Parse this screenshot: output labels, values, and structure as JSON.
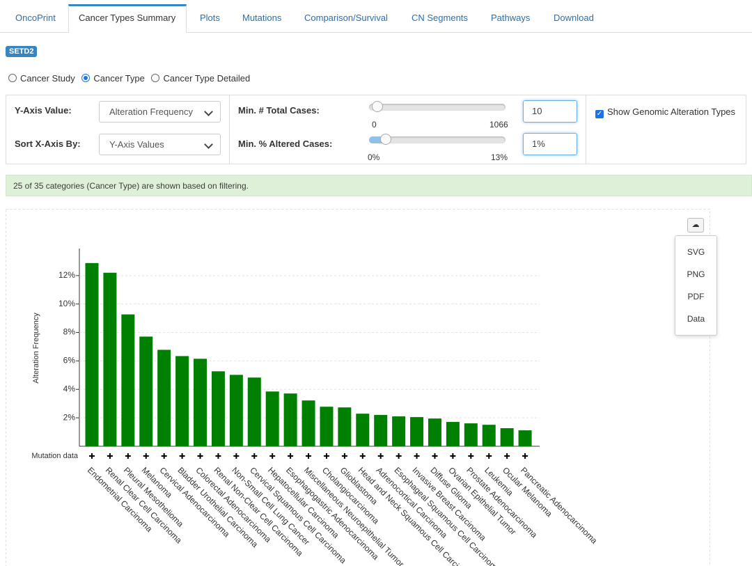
{
  "tabs": [
    "OncoPrint",
    "Cancer Types Summary",
    "Plots",
    "Mutations",
    "Comparison/Survival",
    "CN Segments",
    "Pathways",
    "Download"
  ],
  "gene": "SETD2",
  "view_options": [
    "Cancer Study",
    "Cancer Type",
    "Cancer Type Detailed"
  ],
  "controls": {
    "y_axis_value": {
      "label": "Y-Axis Value:",
      "value": "Alteration Frequency"
    },
    "sort_x_axis": {
      "label": "Sort X-Axis By:",
      "value": "Y-Axis Values"
    },
    "min_total_cases": {
      "label": "Min. # Total Cases:",
      "min": 0,
      "max": 1066,
      "value": 10
    },
    "min_altered_cases": {
      "label": "Min. % Altered Cases:",
      "min": {
        "value": 0,
        "label": "0%"
      },
      "max": {
        "value": 13,
        "label": "13%"
      },
      "value": {
        "value": 1,
        "label": "1%"
      }
    },
    "show_alteration_types": "Show Genomic Alteration Types"
  },
  "info": "25 of 35 categories (Cancer Type) are shown based on filtering.",
  "download_menu": [
    "SVG",
    "PNG",
    "PDF",
    "Data"
  ],
  "chart_data": {
    "type": "bar",
    "y_label": "Alteration Frequency",
    "track_label": "Mutation data",
    "categories": [
      "Endometrial Carcinoma",
      "Renal Clear Cell Carcinoma",
      "Pleural Mesothelioma",
      "Melanoma",
      "Cervical Adenocarcinoma",
      "Bladder Urothelial Carcinoma",
      "Colorectal Adenocarcinoma",
      "Renal Non-Clear Cell Carcinoma",
      "Non-Small Cell Lung Cancer",
      "Cervical Squamous Cell Carcinoma",
      "Hepatocellular Carcinoma",
      "Esophagogastric Adenocarcinoma",
      "Miscellaneous Neuroepithelial Tumor",
      "Cholangiocarcinoma",
      "Glioblastoma",
      "Head and Neck Squamous Cell Carcinoma",
      "Adrenocortical Carcinoma",
      "Esophageal Squamous Cell Carcinoma",
      "Invasive Breast Carcinoma",
      "Diffuse Glioma",
      "Ovarian Epithelial Tumor",
      "Prostate Adenocarcinoma",
      "Leukemia",
      "Ocular Melanoma",
      "Pancreatic Adenocarcinoma"
    ],
    "values": [
      12.88,
      12.2,
      9.27,
      7.71,
      6.78,
      6.34,
      6.15,
      5.27,
      5.02,
      4.83,
      3.85,
      3.71,
      3.22,
      2.78,
      2.73,
      2.29,
      2.2,
      2.1,
      2.05,
      1.95,
      1.71,
      1.61,
      1.51,
      1.27,
      1.12
    ],
    "color": "#008000",
    "ylim": [
      0,
      13.9
    ],
    "yticks": [
      {
        "value": 2,
        "label": "2%"
      },
      {
        "value": 4,
        "label": "4%"
      },
      {
        "value": 6,
        "label": "6%"
      },
      {
        "value": 8,
        "label": "8%"
      },
      {
        "value": 10,
        "label": "10%"
      },
      {
        "value": 12,
        "label": "12%"
      }
    ],
    "grid": true
  }
}
